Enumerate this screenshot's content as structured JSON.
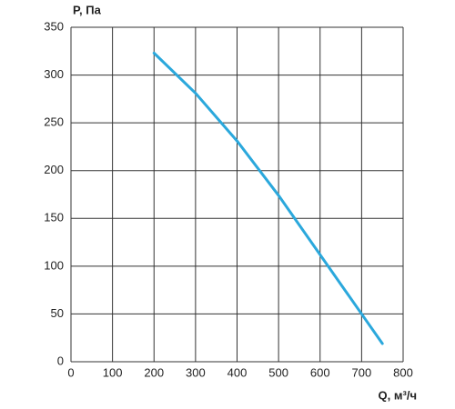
{
  "chart_data": {
    "type": "line",
    "x_label": "Q, м³/ч",
    "y_label": "P, Па",
    "x": [
      200,
      300,
      400,
      500,
      600,
      700,
      750
    ],
    "series": [
      {
        "color": "#2ba8dc",
        "values": [
          323,
          281,
          231,
          174,
          112,
          50,
          19
        ]
      }
    ],
    "xlim": [
      0,
      800
    ],
    "xticks": [
      0,
      100,
      200,
      300,
      400,
      500,
      600,
      700,
      800
    ],
    "ylim": [
      0,
      350
    ],
    "yticks": [
      0,
      50,
      100,
      150,
      200,
      250,
      300,
      350
    ],
    "grid": true
  }
}
